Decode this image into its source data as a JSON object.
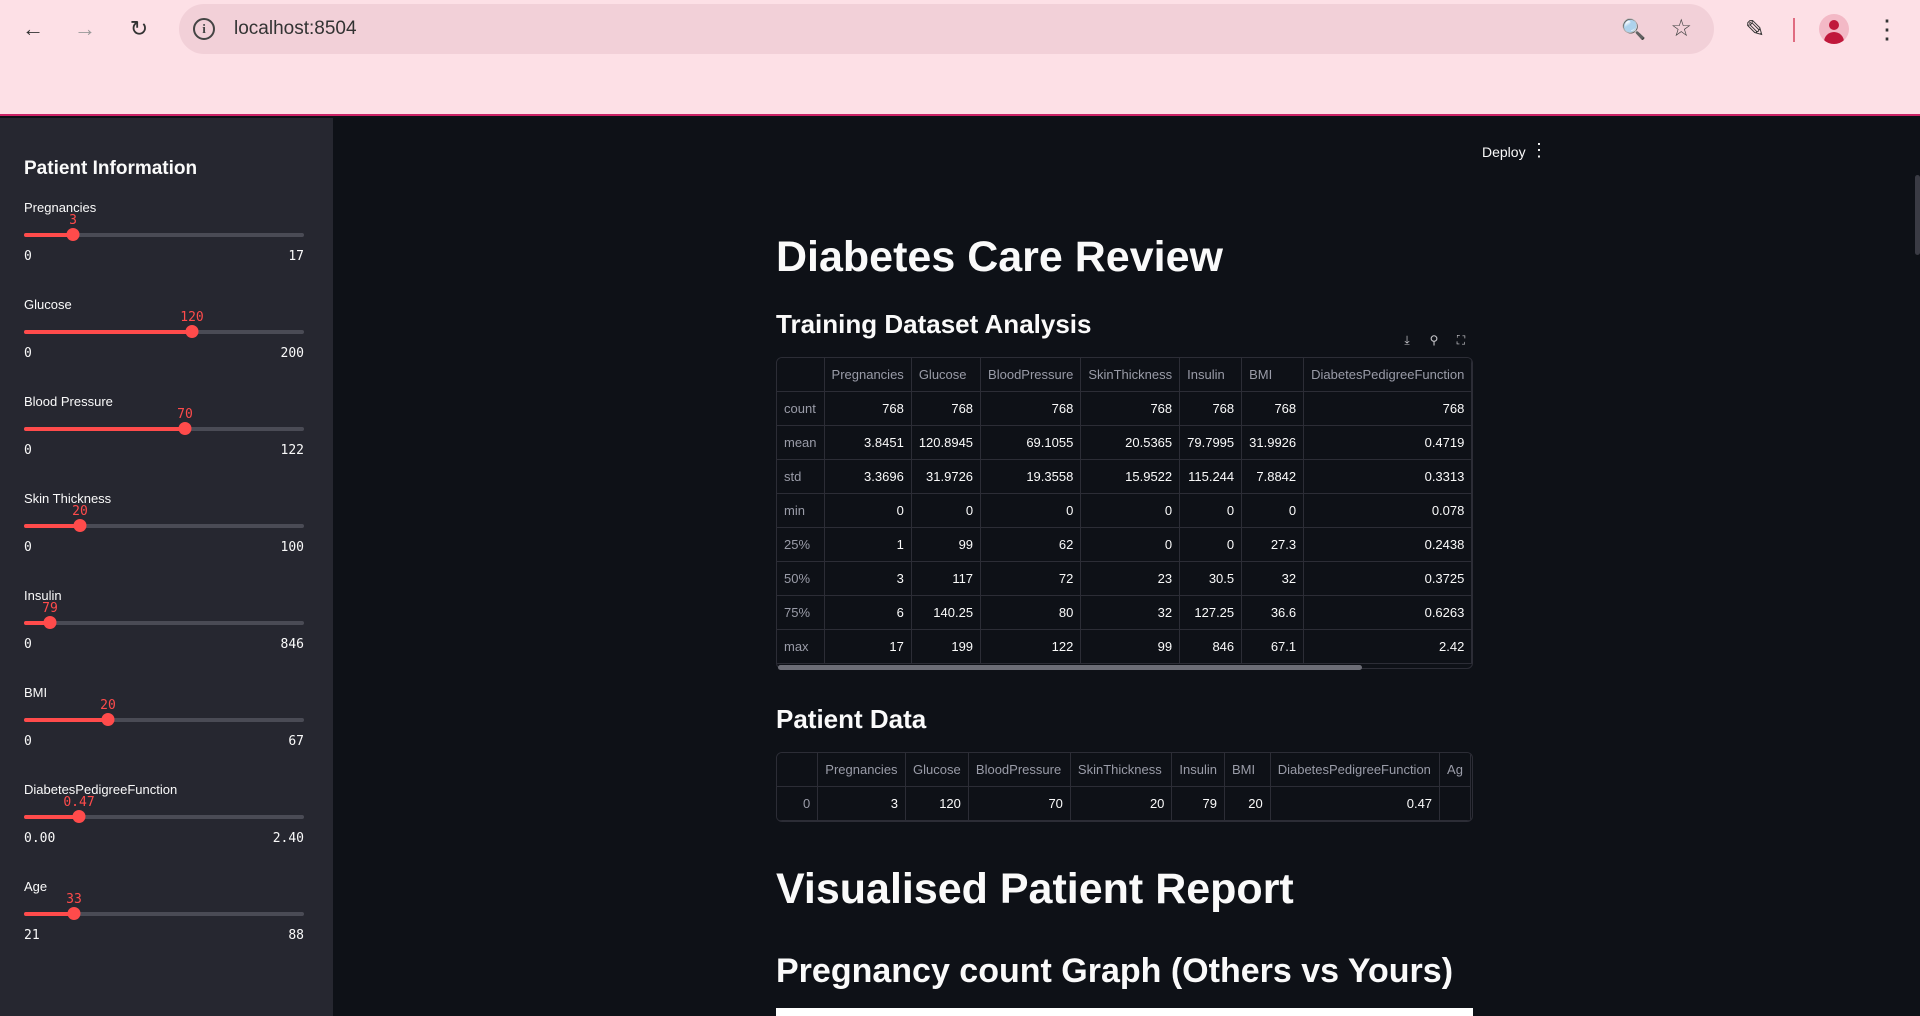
{
  "browser": {
    "url": "localhost:8504"
  },
  "header": {
    "deploy_label": "Deploy"
  },
  "sidebar": {
    "title": "Patient Information",
    "sliders": [
      {
        "label": "Pregnancies",
        "value": "3",
        "min": "0",
        "max": "17",
        "fraction": 0.176
      },
      {
        "label": "Glucose",
        "value": "120",
        "min": "0",
        "max": "200",
        "fraction": 0.6
      },
      {
        "label": "Blood Pressure",
        "value": "70",
        "min": "0",
        "max": "122",
        "fraction": 0.574
      },
      {
        "label": "Skin Thickness",
        "value": "20",
        "min": "0",
        "max": "100",
        "fraction": 0.2
      },
      {
        "label": "Insulin",
        "value": "79",
        "min": "0",
        "max": "846",
        "fraction": 0.093
      },
      {
        "label": "BMI",
        "value": "20",
        "min": "0",
        "max": "67",
        "fraction": 0.299
      },
      {
        "label": "DiabetesPedigreeFunction",
        "value": "0.47",
        "min": "0.00",
        "max": "2.40",
        "fraction": 0.196
      },
      {
        "label": "Age",
        "value": "33",
        "min": "21",
        "max": "88",
        "fraction": 0.179
      }
    ]
  },
  "main": {
    "title": "Diabetes Care Review",
    "training_heading": "Training Dataset Analysis",
    "training_table": {
      "columns": [
        "",
        "Pregnancies",
        "Glucose",
        "BloodPressure",
        "SkinThickness",
        "Insulin",
        "BMI",
        "DiabetesPedigreeFunction"
      ],
      "rows": [
        [
          "count",
          "768",
          "768",
          "768",
          "768",
          "768",
          "768",
          "768"
        ],
        [
          "mean",
          "3.8451",
          "120.8945",
          "69.1055",
          "20.5365",
          "79.7995",
          "31.9926",
          "0.4719"
        ],
        [
          "std",
          "3.3696",
          "31.9726",
          "19.3558",
          "15.9522",
          "115.244",
          "7.8842",
          "0.3313"
        ],
        [
          "min",
          "0",
          "0",
          "0",
          "0",
          "0",
          "0",
          "0.078"
        ],
        [
          "25%",
          "1",
          "99",
          "62",
          "0",
          "0",
          "27.3",
          "0.2438"
        ],
        [
          "50%",
          "3",
          "117",
          "72",
          "23",
          "30.5",
          "32",
          "0.3725"
        ],
        [
          "75%",
          "6",
          "140.25",
          "80",
          "32",
          "127.25",
          "36.6",
          "0.6263"
        ],
        [
          "max",
          "17",
          "199",
          "122",
          "99",
          "846",
          "67.1",
          "2.42"
        ]
      ]
    },
    "patient_heading": "Patient Data",
    "patient_table": {
      "columns": [
        "",
        "Pregnancies",
        "Glucose",
        "BloodPressure",
        "SkinThickness",
        "Insulin",
        "BMI",
        "DiabetesPedigreeFunction",
        "Ag"
      ],
      "rows": [
        [
          "0",
          "3",
          "120",
          "70",
          "20",
          "79",
          "20",
          "0.47",
          ""
        ]
      ]
    },
    "report_heading": "Visualised Patient Report",
    "pregnancy_heading": "Pregnancy count Graph (Others vs Yours)"
  },
  "icons": {
    "back": "back-arrow-icon",
    "forward": "forward-arrow-icon",
    "reload": "reload-icon",
    "info": "info-icon",
    "zoom": "zoom-icon",
    "star": "bookmark-star-icon",
    "extensions": "puzzle-icon",
    "profile": "profile-icon",
    "menu": "kebab-menu-icon",
    "download": "download-icon",
    "search": "search-icon",
    "fullscreen": "fullscreen-icon"
  },
  "colors": {
    "accent": "#ff4b4b",
    "sidebar_bg": "#262730",
    "main_bg": "#0e1117",
    "chrome_bg": "#fde0e6"
  }
}
